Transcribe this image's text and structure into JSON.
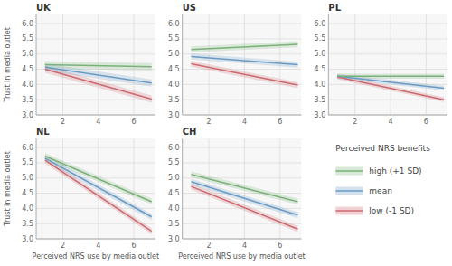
{
  "chart_data": [
    {
      "type": "line",
      "title": "UK",
      "ylabel": "Trust in media outlet",
      "x": [
        1.0,
        7.0
      ],
      "xlim": [
        0.5,
        7.2
      ],
      "xticks": [
        2,
        4,
        6
      ],
      "ylim": [
        3.0,
        6.3
      ],
      "yticks": [
        {
          "value": 3.0,
          "label": "3.0"
        },
        3.5,
        {
          "value": 4.0,
          "label": "4.0"
        },
        4.5,
        {
          "value": 5.0,
          "label": "5.0"
        },
        5.5,
        {
          "value": 6.0,
          "label": "6.0"
        }
      ],
      "grid": true,
      "ribbon_width": 0.12,
      "legend_title": "Perceived NRS benefits",
      "series": [
        {
          "name": "high (+1 SD)",
          "color": "#79B278",
          "values": [
            4.65,
            4.58
          ]
        },
        {
          "name": "mean",
          "color": "#6B9BC3",
          "values": [
            4.57,
            4.05
          ]
        },
        {
          "name": "low (-1 SD)",
          "color": "#CC6A70",
          "values": [
            4.5,
            3.52
          ]
        }
      ]
    },
    {
      "type": "line",
      "title": "US",
      "x": [
        1.0,
        7.0
      ],
      "xlim": [
        0.5,
        7.2
      ],
      "xticks": [
        2,
        4,
        6
      ],
      "ylim": [
        3.0,
        6.3
      ],
      "yticks": [
        {
          "value": 3.0,
          "label": "3.0"
        },
        3.5,
        {
          "value": 4.0,
          "label": "4.0"
        },
        4.5,
        {
          "value": 5.0,
          "label": "5.0"
        },
        5.5,
        {
          "value": 6.0,
          "label": "6.0"
        }
      ],
      "grid": true,
      "ribbon_width": 0.1,
      "series": [
        {
          "name": "high (+1 SD)",
          "color": "#79B278",
          "values": [
            5.15,
            5.32
          ]
        },
        {
          "name": "mean",
          "color": "#6B9BC3",
          "values": [
            4.92,
            4.65
          ]
        },
        {
          "name": "low (-1 SD)",
          "color": "#CC6A70",
          "values": [
            4.68,
            3.98
          ]
        }
      ]
    },
    {
      "type": "line",
      "title": "PL",
      "x": [
        1.0,
        7.0
      ],
      "xlim": [
        0.5,
        7.2
      ],
      "xticks": [
        2,
        4,
        6
      ],
      "ylim": [
        3.0,
        6.3
      ],
      "yticks": [
        {
          "value": 3.0,
          "label": "3.0"
        },
        3.5,
        {
          "value": 4.0,
          "label": "4.0"
        },
        4.5,
        {
          "value": 5.0,
          "label": "5.0"
        },
        5.5,
        {
          "value": 6.0,
          "label": "6.0"
        }
      ],
      "grid": true,
      "ribbon_width": 0.08,
      "series": [
        {
          "name": "high (+1 SD)",
          "color": "#79B278",
          "values": [
            4.27,
            4.27
          ]
        },
        {
          "name": "mean",
          "color": "#6B9BC3",
          "values": [
            4.27,
            3.88
          ]
        },
        {
          "name": "low (-1 SD)",
          "color": "#CC6A70",
          "values": [
            4.25,
            3.5
          ]
        }
      ]
    },
    {
      "type": "line",
      "title": "NL",
      "xlabel": "Perceived NRS use by media outlet",
      "ylabel": "Trust in media outlet",
      "x": [
        1.0,
        7.0
      ],
      "xlim": [
        0.5,
        7.2
      ],
      "xticks": [
        2,
        4,
        6
      ],
      "ylim": [
        3.0,
        6.3
      ],
      "yticks": [
        {
          "value": 3.0,
          "label": "3.0"
        },
        3.5,
        {
          "value": 4.0,
          "label": "4.0"
        },
        4.5,
        {
          "value": 5.0,
          "label": "5.0"
        },
        5.5,
        {
          "value": 6.0,
          "label": "6.0"
        }
      ],
      "grid": true,
      "ribbon_width": 0.1,
      "series": [
        {
          "name": "high (+1 SD)",
          "color": "#79B278",
          "values": [
            5.72,
            4.22
          ]
        },
        {
          "name": "mean",
          "color": "#6B9BC3",
          "values": [
            5.65,
            3.72
          ]
        },
        {
          "name": "low (-1 SD)",
          "color": "#CC6A70",
          "values": [
            5.58,
            3.25
          ]
        }
      ]
    },
    {
      "type": "line",
      "title": "CH",
      "xlabel": "Perceived NRS use by media outlet",
      "x": [
        1.0,
        7.0
      ],
      "xlim": [
        0.5,
        7.2
      ],
      "xticks": [
        2,
        4,
        6
      ],
      "ylim": [
        3.0,
        6.3
      ],
      "yticks": [
        {
          "value": 3.0,
          "label": "3.0"
        },
        3.5,
        {
          "value": 4.0,
          "label": "4.0"
        },
        4.5,
        {
          "value": 5.0,
          "label": "5.0"
        },
        5.5,
        {
          "value": 6.0,
          "label": "6.0"
        }
      ],
      "grid": true,
      "ribbon_width": 0.1,
      "series": [
        {
          "name": "high (+1 SD)",
          "color": "#79B278",
          "values": [
            5.12,
            4.22
          ]
        },
        {
          "name": "mean",
          "color": "#6B9BC3",
          "values": [
            4.88,
            3.78
          ]
        },
        {
          "name": "low (-1 SD)",
          "color": "#CC6A70",
          "values": [
            4.72,
            3.32
          ]
        }
      ]
    }
  ]
}
